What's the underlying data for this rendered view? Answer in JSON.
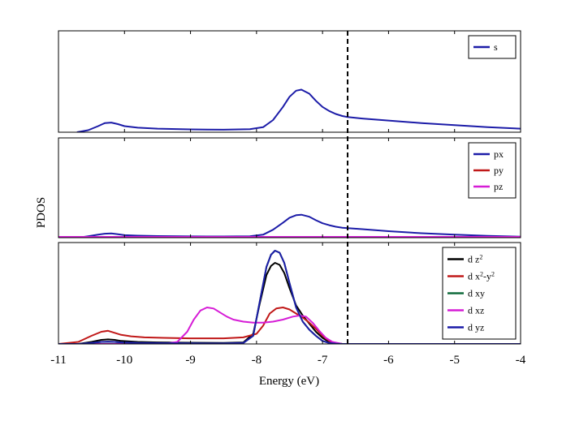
{
  "chart_data": {
    "type": "line",
    "ylabel": "PDOS",
    "xlabel": "Energy (eV)",
    "xlim": [
      -11,
      -4
    ],
    "xticks": [
      "-11",
      "-10",
      "-9",
      "-8",
      "-7",
      "-6",
      "-5",
      "-4"
    ],
    "fermi_energy": -6.62,
    "panels": [
      {
        "id": "s",
        "ylim": [
          0,
          1
        ],
        "series": [
          {
            "name": "s",
            "color": "#1c1ca8",
            "x": [
              -10.72,
              -10.55,
              -10.4,
              -10.3,
              -10.2,
              -10.1,
              -10.0,
              -9.8,
              -9.5,
              -9.0,
              -8.5,
              -8.1,
              -7.9,
              -7.75,
              -7.6,
              -7.5,
              -7.4,
              -7.32,
              -7.2,
              -7.1,
              -7.0,
              -6.9,
              -6.8,
              -6.7,
              -6.62,
              -6.4,
              -6.2,
              -6.0,
              -5.5,
              -5.0,
              -4.5,
              -4.0
            ],
            "y": [
              0.0,
              0.02,
              0.06,
              0.09,
              0.095,
              0.08,
              0.06,
              0.045,
              0.035,
              0.028,
              0.025,
              0.03,
              0.05,
              0.12,
              0.25,
              0.35,
              0.41,
              0.42,
              0.38,
              0.31,
              0.25,
              0.21,
              0.18,
              0.16,
              0.15,
              0.135,
              0.125,
              0.115,
              0.09,
              0.07,
              0.05,
              0.035
            ]
          }
        ],
        "legend": [
          "s"
        ]
      },
      {
        "id": "p",
        "ylim": [
          0,
          1
        ],
        "series": [
          {
            "name": "px",
            "color": "#1c1ca8",
            "x": [
              -11.0,
              -10.7,
              -10.55,
              -10.4,
              -10.3,
              -10.2,
              -10.1,
              -10.0,
              -9.8,
              -9.5,
              -9.0,
              -8.5,
              -8.1,
              -7.9,
              -7.75,
              -7.6,
              -7.5,
              -7.4,
              -7.32,
              -7.2,
              -7.1,
              -7.0,
              -6.9,
              -6.8,
              -6.7,
              -6.62,
              -6.4,
              -6.2,
              -6.0,
              -5.5,
              -5.0,
              -4.5,
              -4.0
            ],
            "y": [
              0.0,
              0.0,
              0.015,
              0.03,
              0.04,
              0.042,
              0.035,
              0.025,
              0.02,
              0.016,
              0.013,
              0.012,
              0.015,
              0.03,
              0.08,
              0.15,
              0.2,
              0.225,
              0.23,
              0.21,
              0.175,
              0.145,
              0.125,
              0.11,
              0.1,
              0.095,
              0.085,
              0.075,
              0.065,
              0.045,
              0.03,
              0.018,
              0.01
            ]
          },
          {
            "name": "py",
            "color": "#c01818",
            "x": [
              -11.0,
              -4.0
            ],
            "y": [
              0.004,
              0.004
            ]
          },
          {
            "name": "pz",
            "color": "#d61cd6",
            "x": [
              -11.0,
              -4.0
            ],
            "y": [
              0.008,
              0.008
            ]
          }
        ],
        "legend": [
          "px",
          "py",
          "pz"
        ]
      },
      {
        "id": "d",
        "ylim": [
          0,
          1
        ],
        "series": [
          {
            "name": "d z^2",
            "color": "#000000",
            "x": [
              -11.0,
              -10.7,
              -10.5,
              -10.35,
              -10.25,
              -10.15,
              -10.05,
              -9.8,
              -9.5,
              -9.0,
              -8.5,
              -8.2,
              -8.05,
              -7.95,
              -7.85,
              -7.78,
              -7.72,
              -7.65,
              -7.58,
              -7.5,
              -7.4,
              -7.3,
              -7.2,
              -7.1,
              -7.0,
              -6.9,
              -6.8,
              -6.7,
              -6.0,
              -5.0,
              -4.0
            ],
            "y": [
              0.0,
              0.0,
              0.02,
              0.04,
              0.045,
              0.04,
              0.03,
              0.02,
              0.015,
              0.012,
              0.01,
              0.015,
              0.1,
              0.4,
              0.68,
              0.77,
              0.8,
              0.78,
              0.7,
              0.55,
              0.38,
              0.28,
              0.2,
              0.12,
              0.06,
              0.02,
              0.005,
              0.0,
              0.0,
              0.0,
              0.0
            ]
          },
          {
            "name": "d x^2-y^2",
            "color": "#c01818",
            "x": [
              -11.0,
              -10.7,
              -10.5,
              -10.35,
              -10.25,
              -10.15,
              -10.05,
              -9.9,
              -9.7,
              -9.4,
              -9.0,
              -8.5,
              -8.2,
              -8.0,
              -7.9,
              -7.8,
              -7.7,
              -7.6,
              -7.5,
              -7.4,
              -7.3,
              -7.2,
              -7.1,
              -7.0,
              -6.9,
              -6.8,
              -6.7,
              -6.0,
              -5.0,
              -4.0
            ],
            "y": [
              0.0,
              0.02,
              0.08,
              0.12,
              0.13,
              0.11,
              0.09,
              0.075,
              0.065,
              0.06,
              0.055,
              0.055,
              0.065,
              0.1,
              0.18,
              0.3,
              0.35,
              0.36,
              0.34,
              0.3,
              0.26,
              0.21,
              0.15,
              0.08,
              0.03,
              0.01,
              0.0,
              0.0,
              0.0,
              0.0
            ]
          },
          {
            "name": "d xy",
            "color": "#0f6a3a",
            "x": [
              -11.0,
              -10.7,
              -10.5,
              -10.35,
              -10.25,
              -10.15,
              -10.05,
              -9.8,
              -9.5,
              -9.0,
              -8.5,
              -8.2,
              -8.05,
              -7.95,
              -7.85,
              -7.78,
              -7.72,
              -7.65,
              -7.58,
              -7.5,
              -7.4,
              -7.3,
              -7.2,
              -7.1,
              -7.0,
              -6.9,
              -6.8,
              -6.7,
              -6.0,
              -5.0,
              -4.0
            ],
            "y": [
              0.0,
              0.0,
              0.01,
              0.02,
              0.022,
              0.02,
              0.015,
              0.01,
              0.008,
              0.006,
              0.005,
              0.01,
              0.08,
              0.42,
              0.76,
              0.88,
              0.92,
              0.9,
              0.8,
              0.6,
              0.36,
              0.22,
              0.14,
              0.08,
              0.03,
              0.01,
              0.003,
              0.0,
              0.0,
              0.0,
              0.0
            ]
          },
          {
            "name": "d xz",
            "color": "#d61cd6",
            "x": [
              -11.0,
              -9.4,
              -9.2,
              -9.05,
              -8.95,
              -8.85,
              -8.75,
              -8.65,
              -8.55,
              -8.45,
              -8.35,
              -8.2,
              -8.05,
              -7.9,
              -7.75,
              -7.6,
              -7.45,
              -7.35,
              -7.25,
              -7.15,
              -7.05,
              -6.95,
              -6.85,
              -6.7,
              -6.0,
              -4.0
            ],
            "y": [
              0.0,
              0.0,
              0.02,
              0.12,
              0.24,
              0.33,
              0.36,
              0.35,
              0.31,
              0.27,
              0.24,
              0.22,
              0.21,
              0.21,
              0.22,
              0.24,
              0.27,
              0.28,
              0.27,
              0.21,
              0.13,
              0.06,
              0.02,
              0.0,
              0.0,
              0.0
            ]
          },
          {
            "name": "d yz",
            "color": "#1c1ca8",
            "x": [
              -11.0,
              -10.7,
              -10.5,
              -10.35,
              -10.25,
              -10.15,
              -10.05,
              -9.8,
              -9.5,
              -9.0,
              -8.5,
              -8.2,
              -8.05,
              -7.95,
              -7.85,
              -7.78,
              -7.72,
              -7.65,
              -7.58,
              -7.5,
              -7.4,
              -7.3,
              -7.2,
              -7.1,
              -7.0,
              -6.9,
              -6.8,
              -6.7,
              -6.0,
              -5.0,
              -4.0
            ],
            "y": [
              0.0,
              0.0,
              0.01,
              0.02,
              0.022,
              0.02,
              0.015,
              0.01,
              0.008,
              0.006,
              0.005,
              0.01,
              0.08,
              0.42,
              0.76,
              0.88,
              0.92,
              0.9,
              0.8,
              0.6,
              0.36,
              0.22,
              0.14,
              0.08,
              0.03,
              0.01,
              0.003,
              0.0,
              0.0,
              0.0,
              0.0
            ]
          }
        ],
        "legend": [
          "d z^2",
          "d x^2-y^2",
          "d xy",
          "d xz",
          "d yz"
        ]
      }
    ]
  }
}
